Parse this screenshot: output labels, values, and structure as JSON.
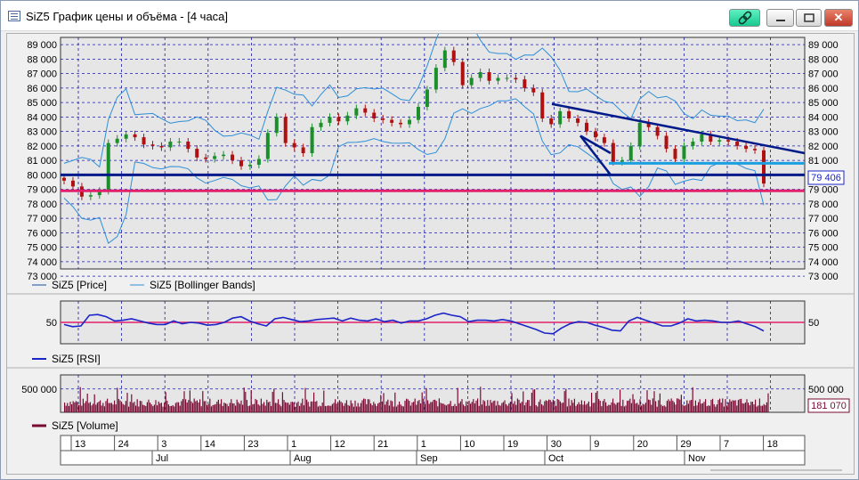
{
  "window": {
    "title": "SiZ5 График цены и объёма - [4 часа]",
    "icons": {
      "app": "chart-window-icon",
      "link": "link-icon",
      "minimize": "minimize-icon",
      "maximize": "maximize-icon",
      "close": "close-icon"
    },
    "close_glyph": "✕"
  },
  "colors": {
    "price_up": "#1a8f2a",
    "price_down": "#b01010",
    "bands": "#2e8fd8",
    "support": "#001a8a",
    "pink_line": "#e0206a",
    "rsi": "#1a24c8",
    "volume": "#7a0a32",
    "grid": "#1a1aa0",
    "plot_bg": "#e6e6e6"
  },
  "chart_data": [
    {
      "type": "line",
      "title": "",
      "y_ticks_left": [
        "89 000",
        "88 000",
        "87 000",
        "86 000",
        "85 000",
        "84 000",
        "83 000",
        "82 000",
        "81 000",
        "80 000",
        "79 000",
        "78 000",
        "77 000",
        "76 000",
        "75 000",
        "74 000",
        "73 000"
      ],
      "y_ticks_right": [
        "89 000",
        "88 000",
        "87 000",
        "86 000",
        "85 000",
        "84 000",
        "83 000",
        "82 000",
        "81 000",
        "80 000",
        "79 000",
        "78 000",
        "77 000",
        "76 000",
        "75 000",
        "74 000",
        "73 000"
      ],
      "ylim": [
        73000,
        89000
      ],
      "last_value_label": "79 406",
      "levels": [
        {
          "name": "support",
          "value": 80000
        },
        {
          "name": "pink",
          "value": 78900
        },
        {
          "name": "cyan",
          "value": 80800
        }
      ],
      "series": [
        {
          "name": "SiZ5 [Price]",
          "close": [
            79600,
            79200,
            78500,
            78600,
            78900,
            82200,
            82500,
            82800,
            82600,
            82100,
            82000,
            81900,
            82300,
            82300,
            81800,
            81200,
            81100,
            81300,
            81400,
            81000,
            80600,
            80700,
            81100,
            82900,
            84000,
            82200,
            81900,
            81500,
            83300,
            83600,
            84000,
            83700,
            84100,
            84600,
            84300,
            83900,
            83800,
            83600,
            83500,
            83800,
            84700,
            85900,
            87400,
            88600,
            87800,
            86200,
            86700,
            87100,
            86500,
            86700,
            86700,
            86600,
            86000,
            85700,
            83900,
            83500,
            84400,
            83900,
            83600,
            83000,
            82600,
            82200,
            80900,
            81000,
            82000,
            83600,
            83300,
            82700,
            81800,
            81100,
            82000,
            82300,
            82800,
            82300,
            82400,
            82300,
            82000,
            81800,
            81700,
            79400
          ]
        },
        {
          "name": "SiZ5 [Bollinger Bands]",
          "upper": [],
          "lower": []
        }
      ],
      "legend": [
        "SiZ5 [Price]",
        "SiZ5 [Bollinger Bands]"
      ]
    },
    {
      "type": "line",
      "y_ticks_left": [
        "50"
      ],
      "y_ticks_right": [
        "50"
      ],
      "ylim": [
        20,
        80
      ],
      "series": [
        {
          "name": "SiZ5 [RSI]",
          "values": [
            47,
            44,
            45,
            60,
            61,
            58,
            52,
            53,
            55,
            52,
            49,
            47,
            47,
            52,
            48,
            50,
            49,
            46,
            47,
            50,
            56,
            58,
            52,
            48,
            45,
            55,
            57,
            54,
            51,
            52,
            54,
            55,
            56,
            52,
            56,
            53,
            52,
            55,
            51,
            53,
            49,
            52,
            52,
            55,
            60,
            63,
            60,
            58,
            51,
            53,
            53,
            52,
            54,
            52,
            48,
            44,
            40,
            35,
            34,
            42,
            48,
            51,
            50,
            46,
            43,
            39,
            38,
            52,
            57,
            53,
            49,
            45,
            45,
            49,
            55,
            52,
            53,
            52,
            50,
            50,
            52,
            48,
            44,
            38
          ]
        }
      ],
      "legend": [
        "SiZ5 [RSI]"
      ]
    },
    {
      "type": "bar",
      "y_ticks_left": [
        "500 000"
      ],
      "y_ticks_right": [
        "500 000"
      ],
      "ylim": [
        0,
        800000
      ],
      "last_value_label": "181 070",
      "series": [
        {
          "name": "SiZ5 [Volume]",
          "values": []
        }
      ],
      "legend": [
        "SiZ5 [Volume]"
      ]
    }
  ],
  "x_axis": {
    "day_labels": [
      "13",
      "24",
      "3",
      "14",
      "23",
      "1",
      "12",
      "21",
      "1",
      "10",
      "19",
      "30",
      "9",
      "20",
      "29",
      "7",
      "18"
    ],
    "month_labels": [
      "Jul",
      "Aug",
      "Sep",
      "Oct",
      "Nov"
    ]
  }
}
